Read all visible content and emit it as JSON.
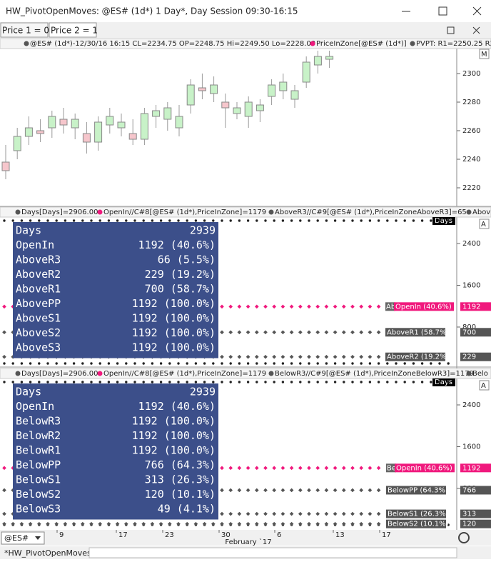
{
  "window": {
    "title": "HW_PivotOpenMoves: @ES# (1d*) 1 Day*, Day Session 09:30-16:15"
  },
  "tabs": [
    "Price 1 = 0",
    "Price 2 = 1"
  ],
  "price_pane": {
    "header": [
      "@ES# (1d*)-12/30/16 16:15 CL=2234.75 OP=2248.75 Hi=2249.50 Lo=2228.00",
      "PriceInZone[@ES# (1d*)]",
      "PVPT: R1=2250.25 R2"
    ],
    "badge": "M",
    "ylim": [
      2207.5,
      2317.5
    ],
    "yticks": [
      2220,
      2240,
      2260,
      2280,
      2300
    ],
    "candles": [
      [
        2238,
        2250,
        2226,
        2232
      ],
      [
        2246,
        2262,
        2240,
        2256
      ],
      [
        2256,
        2270,
        2250,
        2262
      ],
      [
        2260,
        2268,
        2252,
        2258
      ],
      [
        2262,
        2274,
        2255,
        2270
      ],
      [
        2268,
        2276,
        2258,
        2264
      ],
      [
        2262,
        2272,
        2254,
        2268
      ],
      [
        2258,
        2266,
        2244,
        2252
      ],
      [
        2252,
        2270,
        2246,
        2266
      ],
      [
        2264,
        2276,
        2258,
        2270
      ],
      [
        2262,
        2272,
        2256,
        2266
      ],
      [
        2258,
        2268,
        2250,
        2254
      ],
      [
        2254,
        2276,
        2250,
        2272
      ],
      [
        2270,
        2278,
        2262,
        2274
      ],
      [
        2268,
        2280,
        2260,
        2276
      ],
      [
        2262,
        2278,
        2256,
        2270
      ],
      [
        2278,
        2296,
        2272,
        2292
      ],
      [
        2290,
        2300,
        2282,
        2288
      ],
      [
        2286,
        2298,
        2280,
        2292
      ],
      [
        2280,
        2286,
        2262,
        2276
      ],
      [
        2272,
        2280,
        2268,
        2276
      ],
      [
        2270,
        2284,
        2262,
        2280
      ],
      [
        2274,
        2282,
        2266,
        2278
      ],
      [
        2284,
        2296,
        2278,
        2292
      ],
      [
        2288,
        2300,
        2282,
        2294
      ],
      [
        2282,
        2292,
        2276,
        2288
      ],
      [
        2294,
        2312,
        2290,
        2308
      ],
      [
        2306,
        2316,
        2300,
        2312
      ],
      [
        2310,
        2316,
        2304,
        2312
      ]
    ]
  },
  "above_pane": {
    "header": [
      "Days[Days]=2906.00",
      "OpenIn//C#8[@ES# (1d*),PriceInZone]=1179",
      "AboveR3//C#9[@ES# (1d*),PriceInZoneAboveR3]=65",
      "Abov"
    ],
    "badge": "A",
    "axis_title": "Days",
    "ylim": [
      61,
      2879
    ],
    "yticks": [
      800,
      1600,
      2400
    ],
    "table": [
      [
        "Days",
        "2939"
      ],
      [
        "OpenIn",
        "1192 (40.6%)"
      ],
      [
        "AboveR3",
        "66 (5.5%)"
      ],
      [
        "AboveR2",
        "229 (19.2%)"
      ],
      [
        "AboveR1",
        "700 (58.7%)"
      ],
      [
        "AbovePP",
        "1192 (100.0%)"
      ],
      [
        "AboveS1",
        "1192 (100.0%)"
      ],
      [
        "AboveS2",
        "1192 (100.0%)"
      ],
      [
        "AboveS3",
        "1192 (100.0%)"
      ]
    ],
    "tags": [
      {
        "prefix": "Ab",
        "label": "OpenIn (40.6%)",
        "value": 1192,
        "color": "#f0197d"
      },
      {
        "label": "AboveR1 (58.7%)",
        "value": 700,
        "color": "#555555"
      },
      {
        "label": "AboveR2 (19.2%)",
        "value": 229,
        "color": "#555555"
      }
    ]
  },
  "below_pane": {
    "header": [
      "Days[Days]=2906.00",
      "OpenIn//C#8[@ES# (1d*),PriceInZone]=1179",
      "BelowR3//C#9[@ES# (1d*),PriceInZoneBelowR3]=1179",
      "Belo"
    ],
    "badge": "A",
    "axis_title": "Days",
    "ylim": [
      61,
      2879
    ],
    "yticks": [
      800,
      1600,
      2400
    ],
    "table": [
      [
        "Days",
        "2939"
      ],
      [
        "OpenIn",
        "1192 (40.6%)"
      ],
      [
        "BelowR3",
        "1192 (100.0%)"
      ],
      [
        "BelowR2",
        "1192 (100.0%)"
      ],
      [
        "BelowR1",
        "1192 (100.0%)"
      ],
      [
        "BelowPP",
        "766 (64.3%)"
      ],
      [
        "BelowS1",
        "313 (26.3%)"
      ],
      [
        "BelowS2",
        "120 (10.1%)"
      ],
      [
        "BelowS3",
        "49 (4.1%)"
      ]
    ],
    "tags": [
      {
        "prefix": "Be",
        "label": "OpenIn (40.6%)",
        "value": 1192,
        "color": "#f0197d"
      },
      {
        "label": "BelowPP (64.3%)",
        "value": 766,
        "color": "#555555"
      },
      {
        "label": "BelowS1 (26.3%)",
        "value": 313,
        "color": "#555555"
      },
      {
        "label": "BelowS2 (10.1%)",
        "value": 120,
        "color": "#555555"
      }
    ]
  },
  "x_axis": {
    "symbol": "@ES#",
    "ticks": [
      "9",
      "17",
      "23",
      "30",
      "6",
      "13",
      "17"
    ],
    "month_label": "February `17"
  },
  "workspace_tab": "*HW_PivotOpenMoves"
}
